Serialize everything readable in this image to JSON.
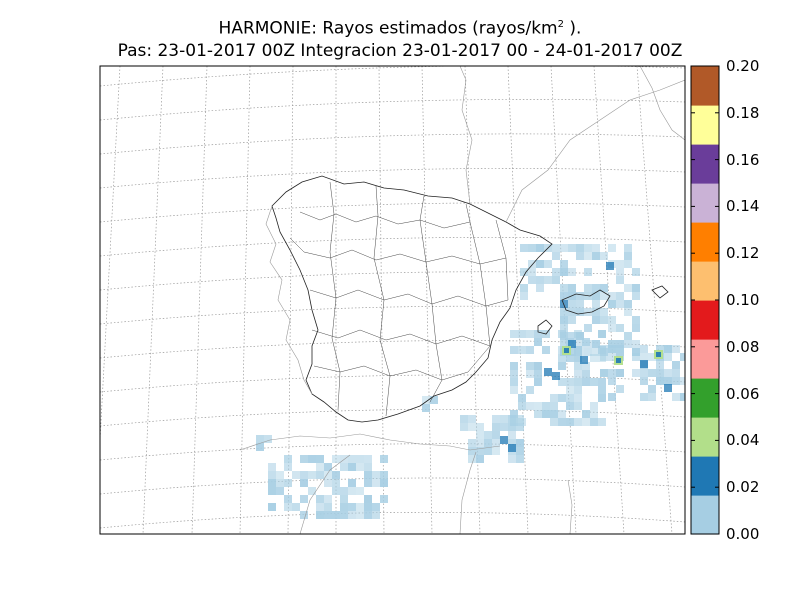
{
  "title": {
    "line1_prefix": "HARMONIE: Rayos estimados  (rayos/km",
    "line1_sup": "2",
    "line1_suffix": " ).",
    "line2": "Pas: 23-01-2017 00Z Integracion 23-01-2017 00 - 24-01-2017 00Z"
  },
  "colorbar": {
    "ticks": [
      "0.00",
      "0.02",
      "0.04",
      "0.06",
      "0.08",
      "0.10",
      "0.12",
      "0.14",
      "0.16",
      "0.18",
      "0.20"
    ],
    "range": [
      0.0,
      0.2
    ],
    "colors": [
      "#a6cee3",
      "#1f78b4",
      "#b2df8a",
      "#33a02c",
      "#fb9a99",
      "#e31a1c",
      "#fdbf6f",
      "#ff7f00",
      "#cab2d6",
      "#6a3d9a",
      "#ffff99",
      "#b15928"
    ]
  },
  "map": {
    "region": "Iberian Peninsula and Balearic Islands",
    "graticule": "dotted",
    "field_color": "#a6cee3"
  }
}
